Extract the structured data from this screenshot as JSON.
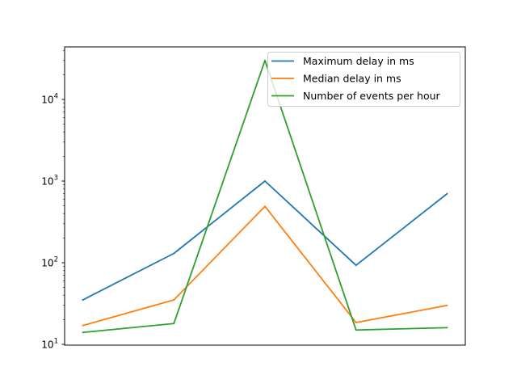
{
  "chart_data": {
    "type": "line",
    "title": "",
    "xlabel": "",
    "ylabel": "",
    "x": [
      0,
      1,
      2,
      3,
      4
    ],
    "yscale": "log",
    "ylim": [
      10,
      45000
    ],
    "y_tick_labels": [
      "10",
      "10",
      "10",
      "10"
    ],
    "y_tick_exponents": [
      "1",
      "2",
      "3",
      "4"
    ],
    "grid": false,
    "legend_position": "top-right",
    "series": [
      {
        "name": "Maximum delay in ms",
        "color": "#1f77b4",
        "values": [
          35,
          130,
          1000,
          93,
          700
        ]
      },
      {
        "name": "Median delay in ms",
        "color": "#ff7f0e",
        "values": [
          17,
          35,
          490,
          18.5,
          30
        ]
      },
      {
        "name": "Number of events per hour",
        "color": "#2ca02c",
        "values": [
          14,
          18,
          30000,
          15,
          16
        ]
      }
    ]
  }
}
